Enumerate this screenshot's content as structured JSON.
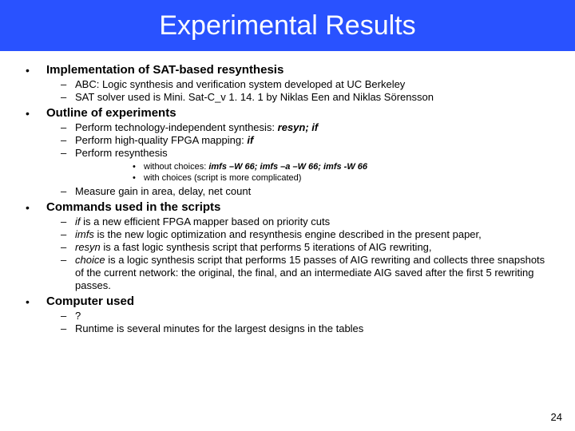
{
  "title": "Experimental Results",
  "page_number": "24",
  "colors": {
    "title_bg": "#2952ff",
    "title_fg": "#ffffff",
    "body_bg": "#ffffff",
    "text": "#000000"
  },
  "sections": [
    {
      "heading": "Implementation of SAT-based resynthesis",
      "subs": [
        {
          "text": "ABC: Logic synthesis and verification system developed at UC Berkeley"
        },
        {
          "text": "SAT solver used is Mini. Sat-C_v 1. 14. 1 by Niklas Een and Niklas Sörensson"
        }
      ]
    },
    {
      "heading": "Outline of experiments",
      "subs": [
        {
          "pre": "Perform technology-independent synthesis: ",
          "bolditalic": "resyn; if"
        },
        {
          "pre": "Perform high-quality FPGA mapping: ",
          "bolditalic": "if"
        },
        {
          "text": "Perform resynthesis",
          "subsubs": [
            {
              "pre": "without choices: ",
              "bolditalic": "imfs –W 66; imfs –a –W 66; imfs  -W 66"
            },
            {
              "text": "with choices (script is more complicated)"
            }
          ]
        },
        {
          "text": "Measure gain in area, delay, net count"
        }
      ]
    },
    {
      "heading": "Commands used in the scripts",
      "subs": [
        {
          "italic": "if",
          "post": " is a new efficient FPGA mapper based on priority cuts"
        },
        {
          "italic": "imfs",
          "post": " is the new logic optimization and resynthesis engine described in the present paper,"
        },
        {
          "italic": "resyn",
          "post": " is a fast logic synthesis script that performs 5 iterations of AIG rewriting,"
        },
        {
          "italic": "choice",
          "post": " is a logic synthesis script that performs 15 passes of AIG rewriting and collects three snapshots of the current network: the original, the final, and an intermediate AIG saved after the first 5 rewriting passes."
        }
      ]
    },
    {
      "heading": "Computer used",
      "subs": [
        {
          "text": "?"
        },
        {
          "text": "Runtime is several minutes for the largest designs in the tables"
        }
      ]
    }
  ]
}
